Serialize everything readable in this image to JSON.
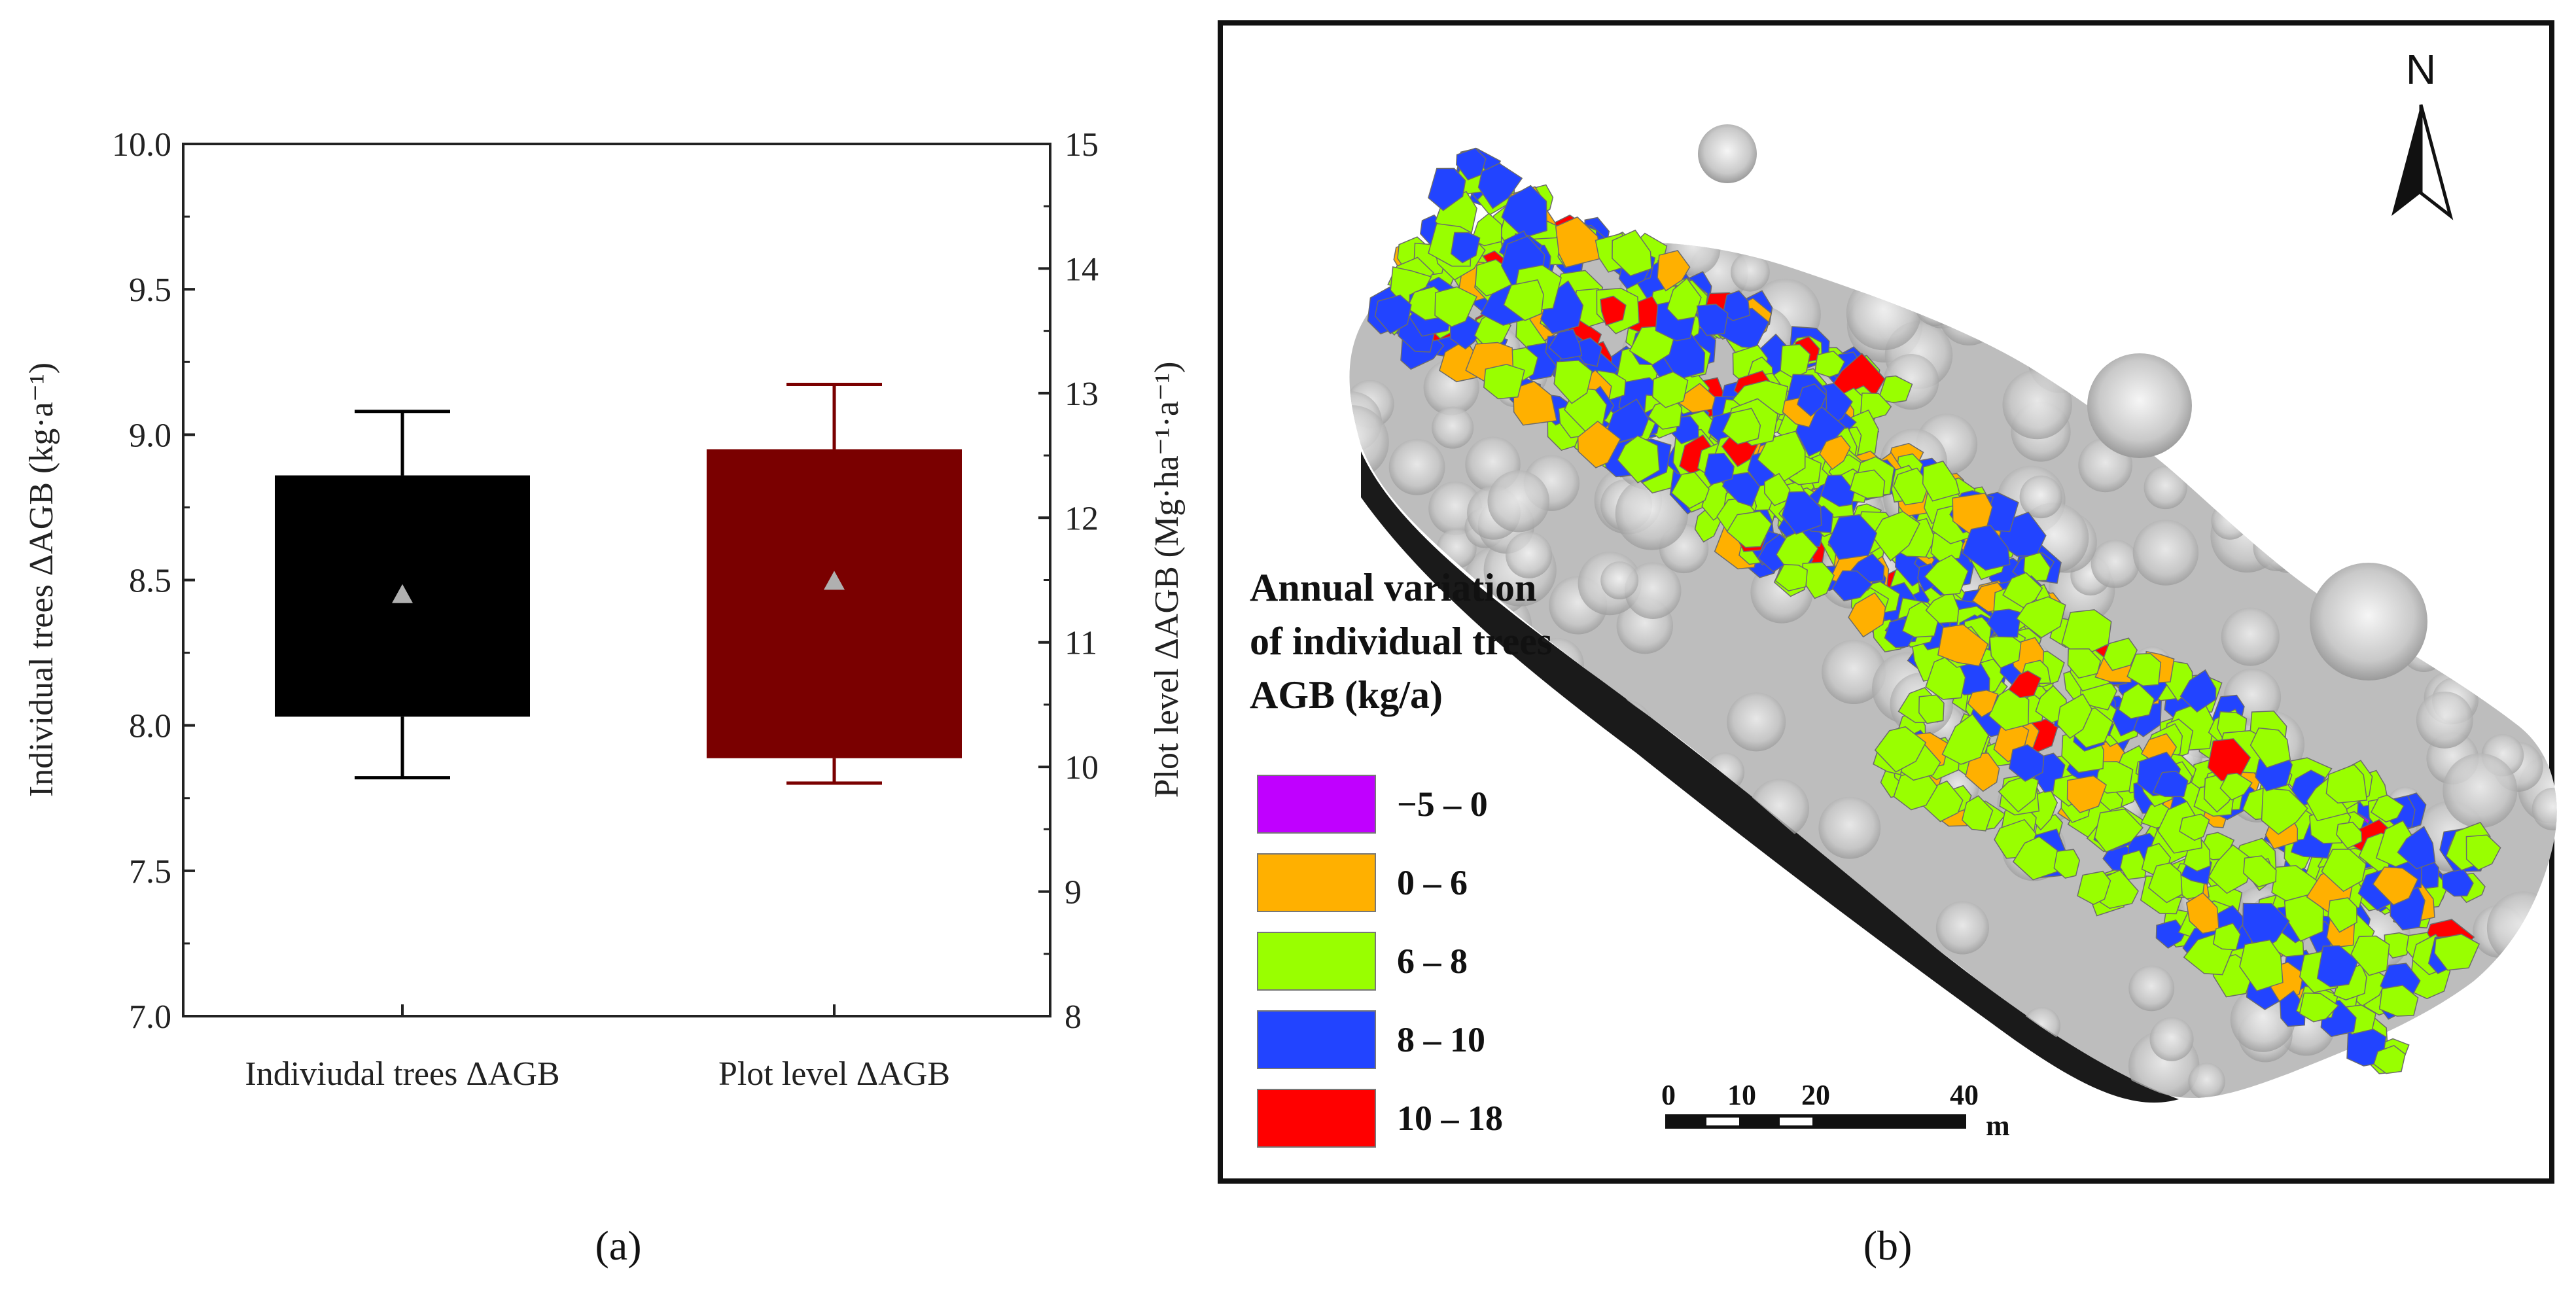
{
  "panel_labels": {
    "a": "(a)",
    "b": "(b)"
  },
  "chart_data": {
    "type": "box",
    "categories": [
      "Indiviudal trees ΔAGB",
      "Plot level ΔAGB"
    ],
    "left_axis": {
      "label": "Individual trees ΔAGB (kg·a⁻¹)",
      "ylim": [
        7.0,
        10.0
      ],
      "ticks": [
        "7.0",
        "7.5",
        "8.0",
        "8.5",
        "9.0",
        "9.5",
        "10.0"
      ]
    },
    "right_axis": {
      "label": "Plot level ΔAGB (Mg·ha⁻¹·a⁻¹)",
      "ylim": [
        8,
        15
      ],
      "ticks": [
        "8",
        "9",
        "10",
        "11",
        "12",
        "13",
        "14",
        "15"
      ]
    },
    "series": [
      {
        "axis": "left",
        "whisker_low": 7.82,
        "q1": 8.03,
        "q3": 8.86,
        "whisker_high": 9.08,
        "mean": 8.45,
        "color": "#000000"
      },
      {
        "axis": "right",
        "whisker_low": 9.87,
        "q1": 10.07,
        "q3": 12.55,
        "whisker_high": 13.07,
        "mean": 11.49,
        "color": "#7a0000"
      }
    ],
    "mean_marker_color": "#b0b0b0"
  },
  "map": {
    "north_label": "N",
    "legend": {
      "title_lines": [
        "Annual variation",
        "of individual trees",
        "AGB (kg/a)"
      ],
      "items": [
        {
          "label": "−5 – 0",
          "color": "#c000ff"
        },
        {
          "label": "0 – 6",
          "color": "#ffb000"
        },
        {
          "label": "6 – 8",
          "color": "#99ff00"
        },
        {
          "label": "8 – 10",
          "color": "#2244ff"
        },
        {
          "label": "10 – 18",
          "color": "#ff0000"
        }
      ]
    },
    "scale_bar": {
      "ticks": [
        "0",
        "10",
        "20",
        "40"
      ],
      "unit": "m"
    }
  }
}
